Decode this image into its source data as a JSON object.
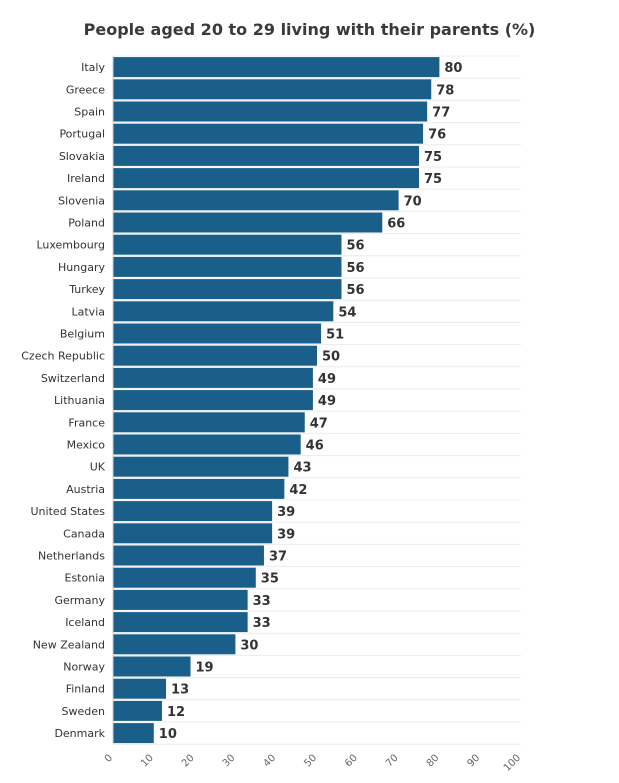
{
  "chart_data": {
    "type": "bar",
    "orientation": "horizontal",
    "title": "People aged 20 to 29 living with their parents (%)",
    "categories": [
      "Italy",
      "Greece",
      "Spain",
      "Portugal",
      "Slovakia",
      "Ireland",
      "Slovenia",
      "Poland",
      "Luxembourg",
      "Hungary",
      "Turkey",
      "Latvia",
      "Belgium",
      "Czech Republic",
      "Switzerland",
      "Lithuania",
      "France",
      "Mexico",
      "UK",
      "Austria",
      "United States",
      "Canada",
      "Netherlands",
      "Estonia",
      "Germany",
      "Iceland",
      "New Zealand",
      "Norway",
      "Finland",
      "Sweden",
      "Denmark"
    ],
    "values": [
      80,
      78,
      77,
      76,
      75,
      75,
      70,
      66,
      56,
      56,
      56,
      54,
      51,
      50,
      49,
      49,
      47,
      46,
      43,
      42,
      39,
      39,
      37,
      35,
      33,
      33,
      30,
      19,
      13,
      12,
      10
    ],
    "xlim": [
      0,
      100
    ],
    "xticks": [
      "0",
      "10",
      "20",
      "30",
      "40",
      "50",
      "60",
      "70",
      "80",
      "90",
      "100"
    ],
    "bar_color": "#1a5f8a",
    "grid": true
  }
}
